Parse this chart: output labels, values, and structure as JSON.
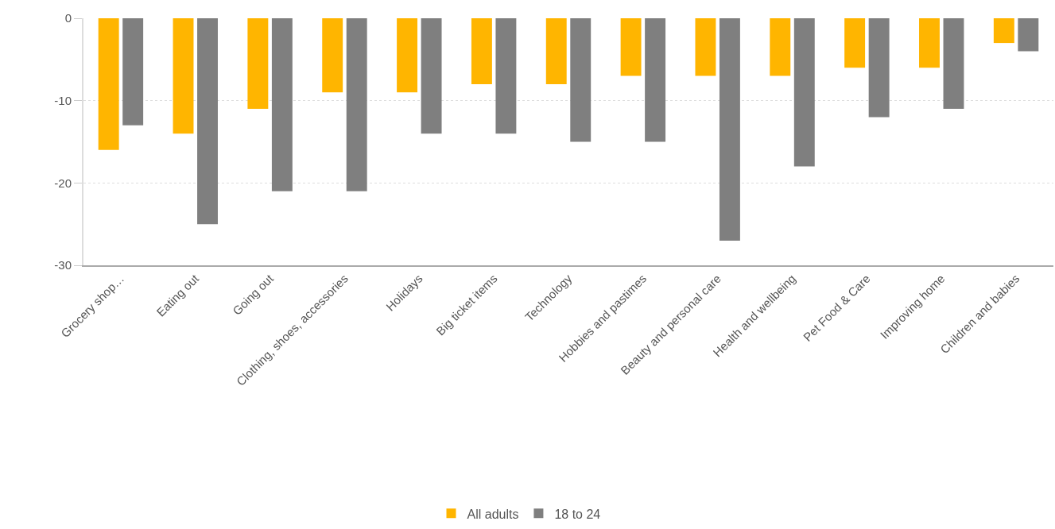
{
  "chart_data": {
    "type": "bar",
    "categories": [
      "Grocery shop…",
      "Eating out",
      "Going out",
      "Clothing, shoes, accessories",
      "Holidays",
      "Big ticket items",
      "Technology",
      "Hobbies and pastimes",
      "Beauty and personal care",
      "Health and wellbeing",
      "Pet Food & Care",
      "Improving home",
      "Children and babies"
    ],
    "series": [
      {
        "name": "All adults",
        "color": "#ffb500",
        "values": [
          -16,
          -14,
          -11,
          -9,
          -9,
          -8,
          -8,
          -7,
          -7,
          -7,
          -6,
          -6,
          -3
        ]
      },
      {
        "name": "18 to 24",
        "color": "#7f7f7f",
        "values": [
          -13,
          -25,
          -21,
          -21,
          -14,
          -14,
          -15,
          -15,
          -27,
          -18,
          -12,
          -11,
          -4
        ]
      }
    ],
    "ylim": [
      -30,
      0
    ],
    "yticks": [
      -30,
      -20,
      -10,
      0
    ],
    "grid": "y",
    "legend": "bottom"
  }
}
